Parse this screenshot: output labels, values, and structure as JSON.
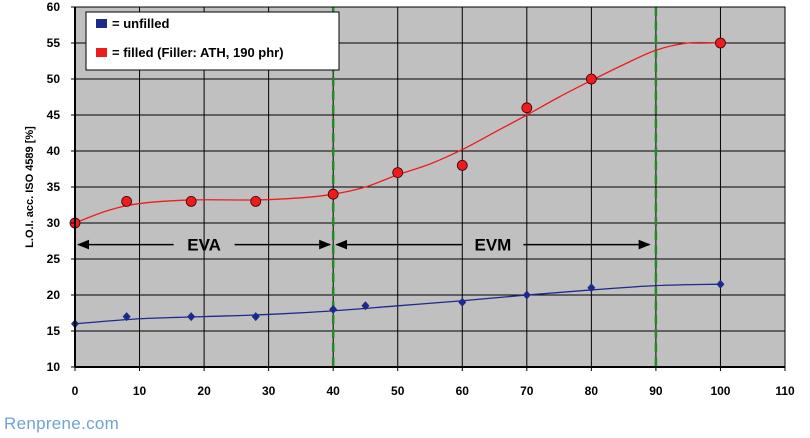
{
  "chart_data": {
    "type": "line",
    "xlabel": "",
    "ylabel": "L.O.I. acc. ISO 4589 [%]",
    "xlim": [
      0,
      110
    ],
    "ylim": [
      10,
      60
    ],
    "x_ticks": [
      0,
      10,
      20,
      30,
      40,
      50,
      60,
      70,
      80,
      90,
      100,
      110
    ],
    "y_ticks": [
      10,
      15,
      20,
      25,
      30,
      35,
      40,
      45,
      50,
      55,
      60
    ],
    "grid": true,
    "legend_position": "top-left",
    "plot_background": "#c0c0c0",
    "series": [
      {
        "name": "= unfilled",
        "color": "#1c2a8a",
        "marker": "diamond",
        "points": [
          [
            0,
            16
          ],
          [
            8,
            17
          ],
          [
            18,
            17
          ],
          [
            28,
            17
          ],
          [
            40,
            18
          ],
          [
            45,
            18.5
          ],
          [
            60,
            19
          ],
          [
            70,
            20
          ],
          [
            80,
            21
          ],
          [
            100,
            21.5
          ]
        ],
        "trend": [
          [
            0,
            16
          ],
          [
            10,
            16.7
          ],
          [
            20,
            17
          ],
          [
            30,
            17.3
          ],
          [
            40,
            17.8
          ],
          [
            50,
            18.5
          ],
          [
            60,
            19.2
          ],
          [
            70,
            20
          ],
          [
            80,
            20.7
          ],
          [
            90,
            21.3
          ],
          [
            100,
            21.5
          ]
        ]
      },
      {
        "name": "= filled (Filler: ATH, 190 phr)",
        "color": "#ee1c1c",
        "marker": "circle",
        "points": [
          [
            0,
            30
          ],
          [
            8,
            33
          ],
          [
            18,
            33
          ],
          [
            28,
            33
          ],
          [
            40,
            34
          ],
          [
            50,
            37
          ],
          [
            60,
            38
          ],
          [
            70,
            46
          ],
          [
            80,
            50
          ],
          [
            100,
            55
          ]
        ],
        "trend": [
          [
            0,
            30
          ],
          [
            5,
            31.7
          ],
          [
            10,
            32.7
          ],
          [
            18,
            33.2
          ],
          [
            28,
            33.2
          ],
          [
            35,
            33.5
          ],
          [
            40,
            34
          ],
          [
            45,
            35
          ],
          [
            50,
            36.7
          ],
          [
            55,
            38.2
          ],
          [
            60,
            40.2
          ],
          [
            65,
            42.6
          ],
          [
            70,
            45
          ],
          [
            75,
            47.5
          ],
          [
            80,
            49.8
          ],
          [
            85,
            52
          ],
          [
            90,
            54
          ],
          [
            95,
            55
          ],
          [
            100,
            55
          ]
        ]
      }
    ],
    "vertical_lines": [
      {
        "x": 40,
        "color": "#228b22",
        "style": "dashed"
      },
      {
        "x": 90,
        "color": "#228b22",
        "style": "dashed"
      }
    ],
    "regions": [
      {
        "label": "EVA",
        "x_start": 0.5,
        "x_end": 39.5,
        "y": 27
      },
      {
        "label": "EVM",
        "x_start": 40.5,
        "x_end": 89,
        "y": 27
      }
    ]
  },
  "watermark": "Renprene.com"
}
